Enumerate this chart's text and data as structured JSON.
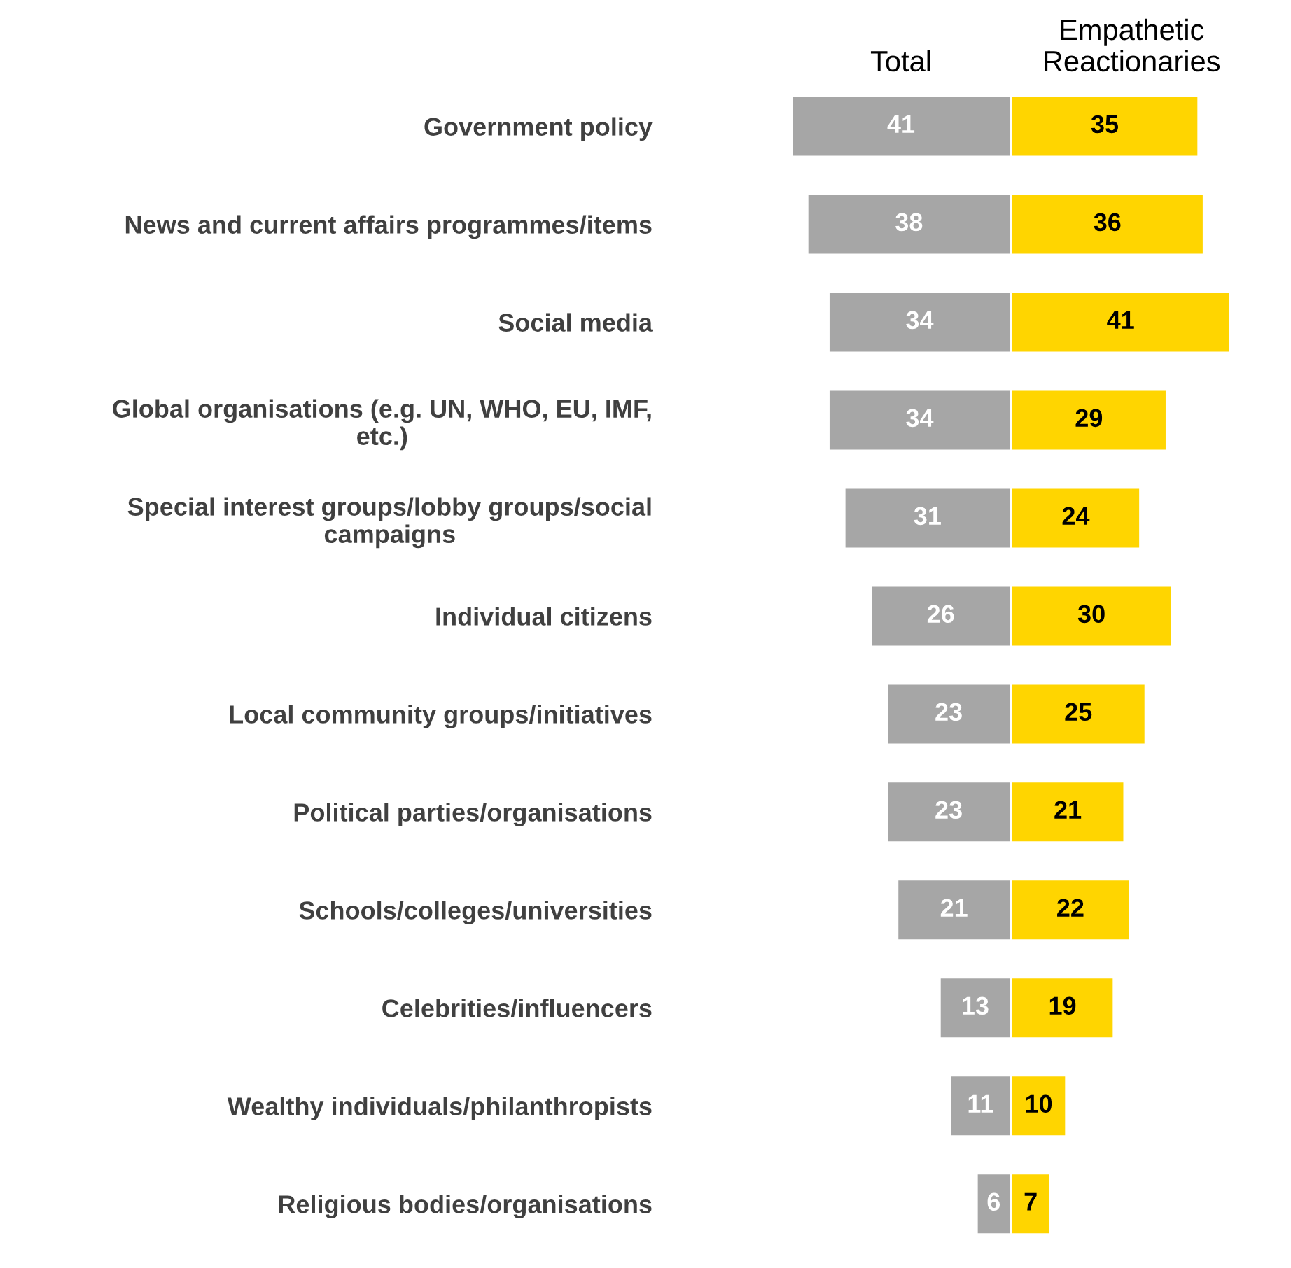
{
  "chart_data": [
    {
      "type": "bar",
      "orientation": "horizontal",
      "data_labels": true,
      "grid": false,
      "legend": false,
      "tick_labels": "y",
      "xlim": [
        41,
        0
      ],
      "categories": [
        "Government policy",
        "News and current affairs programmes/items",
        "Social media",
        "Global organisations (e.g. UN, WHO, EU, IMF,\netc.)",
        "Special interest groups/lobby groups/social\ncampaigns",
        "Individual citizens",
        "Local community groups/initiatives",
        "Political parties/organisations",
        "Schools/colleges/universities",
        "Celebrities/influencers",
        "Wealthy individuals/philanthropists",
        "Religious bodies/organisations"
      ],
      "series": [
        {
          "name": "Total",
          "color": "#a6a6a6",
          "values": [
            41,
            38,
            34,
            34,
            31,
            26,
            23,
            23,
            21,
            13,
            11,
            6
          ]
        }
      ]
    },
    {
      "type": "bar",
      "orientation": "horizontal",
      "data_labels": true,
      "grid": false,
      "legend": false,
      "tick_labels": false,
      "xlim": [
        0,
        41
      ],
      "categories": [
        null,
        null,
        null,
        null,
        null,
        null,
        null,
        null,
        null,
        null,
        null,
        null
      ],
      "series": [
        {
          "name": "Empathetic\nReactionaries",
          "color": "#ffd500",
          "values": [
            35,
            36,
            41,
            29,
            24,
            30,
            25,
            21,
            22,
            19,
            10,
            7
          ]
        }
      ]
    }
  ]
}
